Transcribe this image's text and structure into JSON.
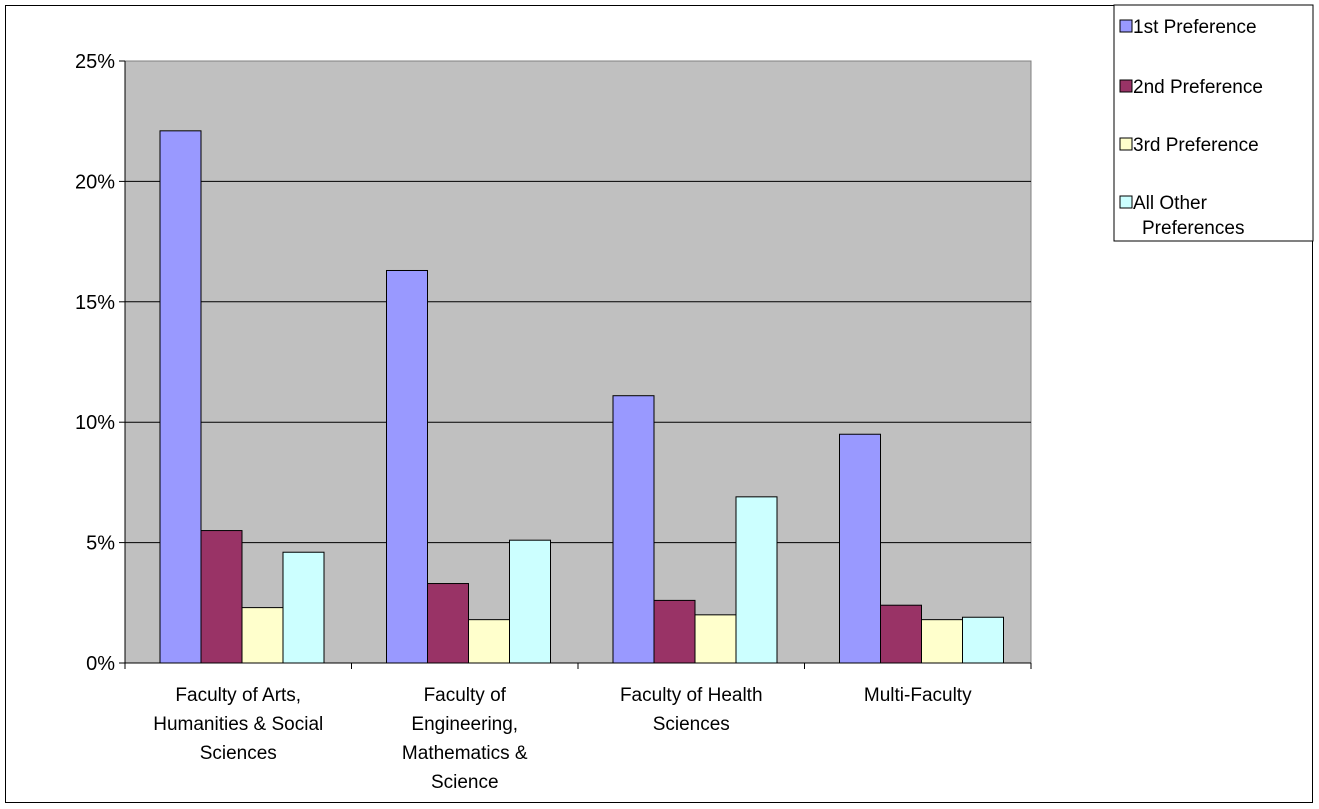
{
  "chart_data": {
    "type": "bar",
    "title": "",
    "xlabel": "",
    "ylabel": "",
    "ylim": [
      0,
      25
    ],
    "y_tick_format": "percent",
    "y_ticks": [
      "0%",
      "5%",
      "10%",
      "15%",
      "20%",
      "25%"
    ],
    "grid": true,
    "legend_position": "top-right",
    "plot_background": "#c0c0c0",
    "categories": [
      [
        "Faculty of Arts,",
        "Humanities & Social",
        "Sciences"
      ],
      [
        "Faculty of",
        "Engineering,",
        "Mathematics &",
        "Science"
      ],
      [
        "Faculty of Health",
        "Sciences"
      ],
      [
        "Multi-Faculty"
      ]
    ],
    "series": [
      {
        "name": "1st Preference",
        "color": "#9999ff",
        "values": [
          22.1,
          16.3,
          11.1,
          9.5
        ]
      },
      {
        "name": "2nd Preference",
        "color": "#993366",
        "values": [
          5.5,
          3.3,
          2.6,
          2.4
        ]
      },
      {
        "name": "3rd Preference",
        "color": "#ffffcc",
        "values": [
          2.3,
          1.8,
          2.0,
          1.8
        ]
      },
      {
        "name": "All Other Preferences",
        "legend_lines": [
          "All Other",
          "Preferences"
        ],
        "color": "#ccffff",
        "values": [
          4.6,
          5.1,
          6.9,
          1.9
        ]
      }
    ]
  }
}
